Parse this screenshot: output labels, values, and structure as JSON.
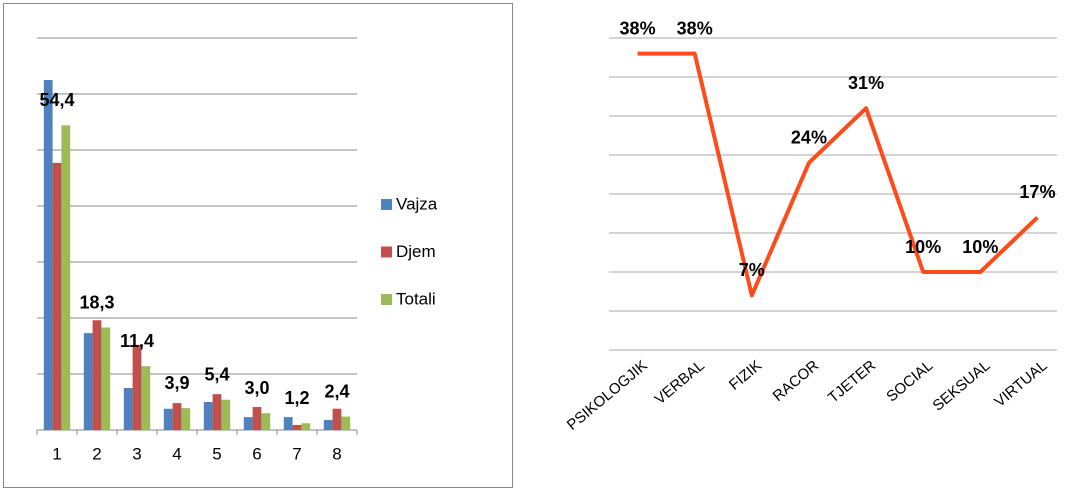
{
  "chart_data": [
    {
      "type": "bar",
      "categories": [
        "1",
        "2",
        "3",
        "4",
        "5",
        "6",
        "7",
        "8"
      ],
      "series": [
        {
          "name": "Vajza",
          "color": "#4f81bd",
          "values": [
            62.5,
            17.3,
            7.5,
            3.8,
            5.0,
            2.3,
            2.3,
            1.8
          ]
        },
        {
          "name": "Djem",
          "color": "#c0504d",
          "values": [
            47.7,
            19.6,
            15.2,
            4.8,
            6.4,
            4.1,
            0.9,
            3.8
          ]
        },
        {
          "name": "Totali",
          "color": "#9bbb59",
          "values": [
            54.4,
            18.3,
            11.4,
            3.9,
            5.4,
            3.0,
            1.2,
            2.4
          ],
          "value_labels": [
            "54,4",
            "18,3",
            "11,4",
            "3,9",
            "5,4",
            "3,0",
            "1,2",
            "2,4"
          ]
        }
      ],
      "ylim": [
        0,
        70
      ],
      "yticks": [
        0,
        10,
        20,
        30,
        40,
        50,
        60,
        70
      ],
      "grid": true,
      "legend": "right"
    },
    {
      "type": "line",
      "categories": [
        "PSIKOLOGJIK",
        "VERBAL",
        "FIZIK",
        "RACOR",
        "TJETER",
        "SOCIAL",
        "SEKSUAL",
        "VIRTUAL"
      ],
      "values": [
        38,
        38,
        7,
        24,
        31,
        10,
        10,
        17
      ],
      "value_labels": [
        "38%",
        "38%",
        "7%",
        "24%",
        "31%",
        "10%",
        "10%",
        "17%"
      ],
      "color": "#ff4a1a",
      "ylim": [
        0,
        40
      ],
      "yticks": [
        0,
        5,
        10,
        15,
        20,
        25,
        30,
        35,
        40
      ],
      "grid": true
    }
  ]
}
